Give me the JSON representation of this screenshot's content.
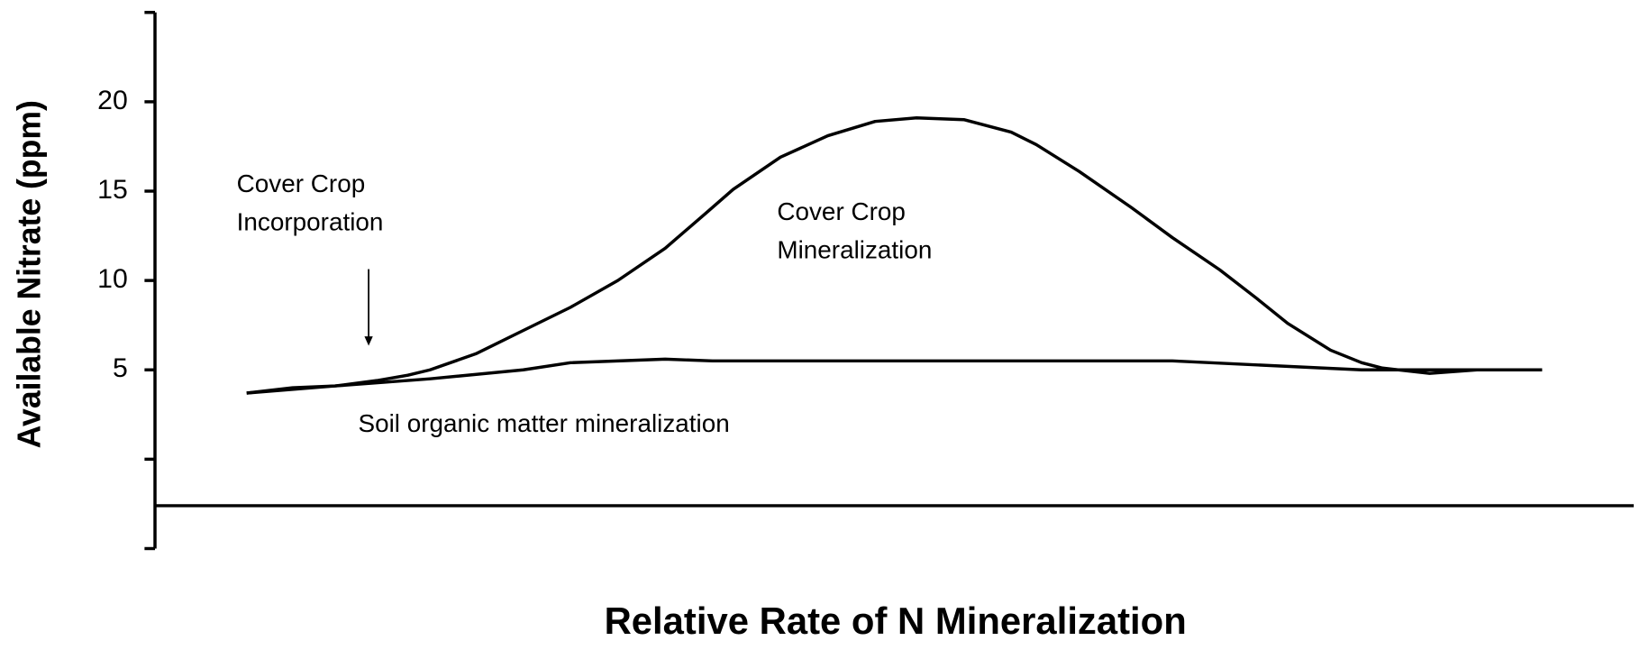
{
  "chart_data": {
    "type": "line",
    "y_label": "Available Nitrate (ppm)",
    "x_label": "Relative Rate of N Mineralization",
    "annotations": [
      {
        "lines": [
          "Cover Crop",
          "Incorporation"
        ]
      },
      {
        "lines": [
          "Cover Crop",
          "Mineralization"
        ]
      },
      {
        "lines": [
          "Soil organic matter mineralization"
        ]
      }
    ],
    "xlim": [
      0,
      100
    ],
    "ylim": [
      -5,
      25
    ],
    "yticks": [
      5,
      10,
      15,
      20
    ],
    "unlabeled_yticks": [
      -5,
      0,
      25
    ],
    "x_axis_at": -2.6,
    "series": [
      {
        "color": "#000000",
        "x": [
          6.2,
          9.3,
          12.2,
          15.0,
          17.1,
          18.6,
          21.7,
          24.9,
          28.1,
          31.3,
          34.5,
          37.3,
          39.1,
          42.3,
          45.5,
          48.7,
          51.5,
          54.7,
          57.9,
          59.6,
          62.5,
          66.0,
          68.8,
          72.0,
          74.5,
          76.6,
          79.5,
          81.6,
          83.0,
          86.2,
          89.4,
          93.8
        ],
        "values": [
          3.7,
          4.0,
          4.1,
          4.4,
          4.7,
          5.0,
          5.9,
          7.2,
          8.5,
          10.0,
          11.8,
          13.8,
          15.1,
          16.9,
          18.1,
          18.9,
          19.1,
          19.0,
          18.3,
          17.6,
          16.1,
          14.1,
          12.4,
          10.6,
          9.0,
          7.6,
          6.1,
          5.4,
          5.1,
          4.8,
          5.0,
          5.0
        ]
      },
      {
        "color": "#000000",
        "x": [
          6.2,
          12.2,
          18.6,
          24.9,
          28.1,
          34.5,
          37.7,
          68.8,
          81.6,
          93.8
        ],
        "values": [
          3.7,
          4.1,
          4.5,
          5.0,
          5.4,
          5.6,
          5.5,
          5.5,
          5.0,
          5.0
        ]
      }
    ]
  }
}
